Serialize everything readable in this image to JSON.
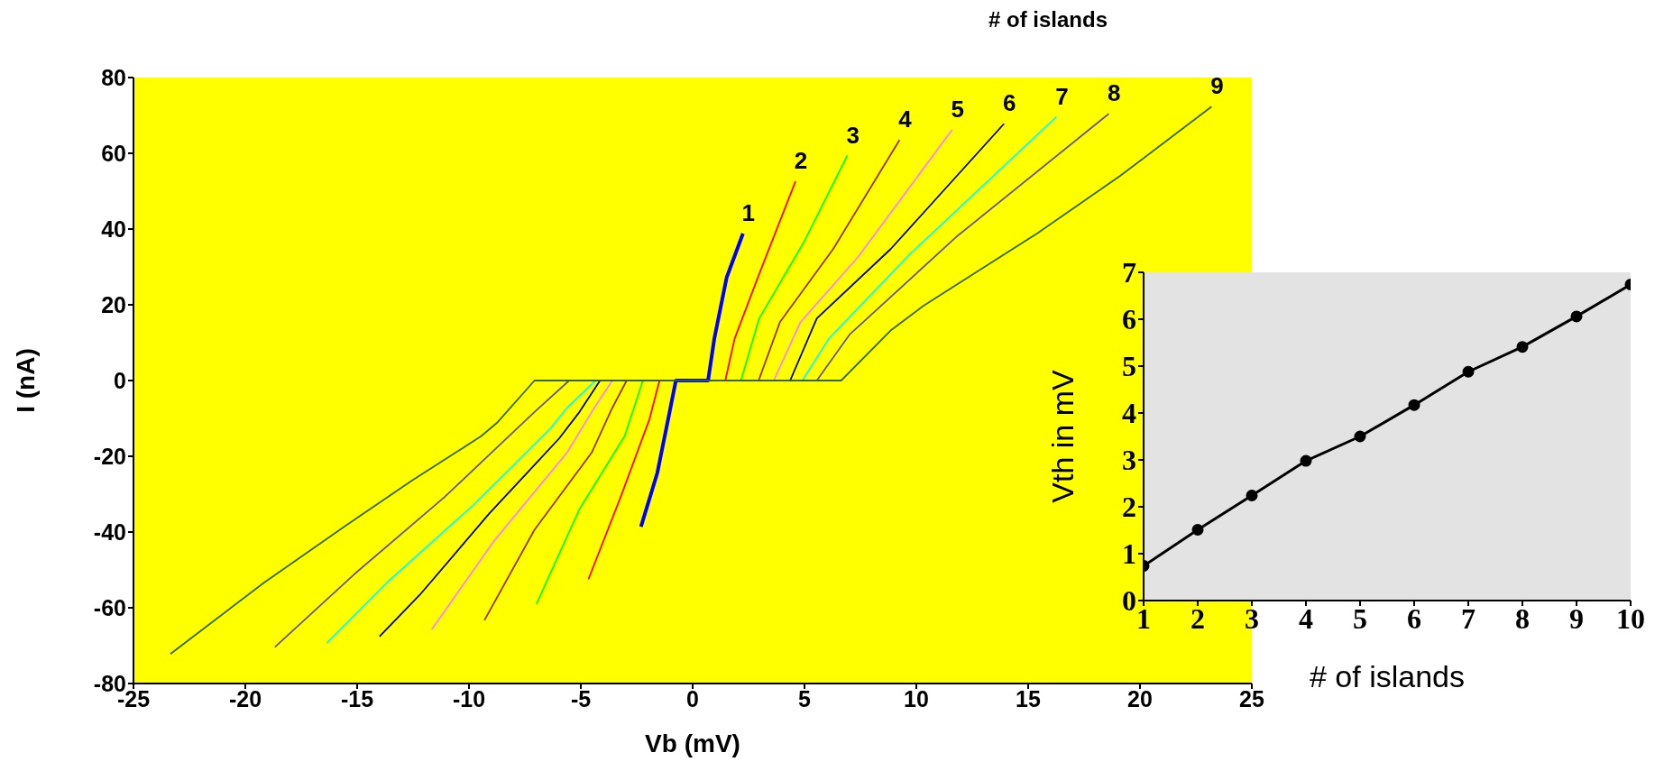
{
  "chart_data": [
    {
      "type": "line",
      "xlabel": "Vb (mV)",
      "ylabel": "I (nA)",
      "legend_title": "# of islands",
      "xlim": [
        -25,
        25
      ],
      "ylim": [
        -80,
        80
      ],
      "xticks": [
        -25,
        -20,
        -15,
        -10,
        -5,
        0,
        5,
        10,
        15,
        20,
        25
      ],
      "yticks": [
        -80,
        -60,
        -40,
        -20,
        0,
        20,
        40,
        60,
        80
      ],
      "marker": "none",
      "series": [
        {
          "name": "1",
          "color": "#0000ff",
          "x": [
            -2.31,
            -1.58,
            -1.03,
            -0.75,
            0.69,
            0.97,
            1.52,
            2.25
          ],
          "values": [
            -38.6,
            -24.4,
            -8.3,
            0,
            0,
            11.1,
            27.2,
            38.8
          ]
        },
        {
          "name": "2",
          "color": "#ff0000",
          "x": [
            -4.66,
            -3.22,
            -1.94,
            -1.48,
            1.46,
            1.88,
            2.98,
            4.6
          ],
          "values": [
            -52.5,
            -30.8,
            -10.4,
            0,
            0,
            11.1,
            28.2,
            52.6
          ]
        },
        {
          "name": "3",
          "color": "#00ff00",
          "x": [
            -6.98,
            -5.06,
            -3.04,
            -2.22,
            2.16,
            2.98,
            5.0,
            6.92
          ],
          "values": [
            -59,
            -34,
            -14.7,
            0,
            0,
            16.4,
            36.8,
            59.4
          ]
        },
        {
          "name": "4",
          "color": "#993300",
          "x": [
            -9.31,
            -7.07,
            -4.51,
            -3.59,
            -2.95,
            2.95,
            3.9,
            6.28,
            9.25
          ],
          "values": [
            -63.3,
            -39.4,
            -19,
            -7.2,
            0,
            0,
            15.4,
            34.7,
            63.5
          ]
        },
        {
          "name": "5",
          "color": "#ff80ff",
          "x": [
            -11.66,
            -8.91,
            -5.61,
            -4.51,
            -3.59,
            3.63,
            4.82,
            7.38,
            11.6
          ],
          "values": [
            -65.7,
            -42.6,
            -19,
            -8.3,
            0,
            0,
            15.4,
            32.5,
            66.2
          ]
        },
        {
          "name": "6",
          "color": "#000080",
          "x": [
            -14.0,
            -12.2,
            -9.09,
            -5.97,
            -5.06,
            -4.14,
            4.36,
            5.55,
            8.85,
            13.92
          ],
          "values": [
            -67.6,
            -56.6,
            -35.1,
            -15.3,
            -8.3,
            0,
            0,
            16.4,
            34.7,
            67.8
          ]
        },
        {
          "name": "7",
          "color": "#00ffff",
          "x": [
            -16.35,
            -13.67,
            -9.82,
            -6.34,
            -5.61,
            -4.33,
            4.91,
            6.1,
            9.76,
            16.27
          ],
          "values": [
            -69.3,
            -53.4,
            -33,
            -12.6,
            -7.2,
            0,
            0,
            11.1,
            33.6,
            69.6
          ]
        },
        {
          "name": "8",
          "color": "#665588",
          "x": [
            -18.68,
            -15.14,
            -11.1,
            -7.07,
            -5.52,
            5.55,
            7.01,
            11.78,
            18.6
          ],
          "values": [
            -70.4,
            -51.2,
            -30.8,
            -8.3,
            0,
            0,
            12.1,
            37.9,
            70.4
          ]
        },
        {
          "name": "9",
          "color": "#336600",
          "x": [
            -23.35,
            -19.17,
            -15.5,
            -12.57,
            -9.46,
            -8.72,
            -7.07,
            6.64,
            8.85,
            10.31,
            15.44,
            19.1,
            23.2
          ],
          "values": [
            -72.2,
            -53.4,
            -38.3,
            -26.5,
            -14.7,
            -11,
            0,
            0,
            13.2,
            19.7,
            39,
            54,
            72.3
          ]
        }
      ]
    },
    {
      "type": "line",
      "xlabel": "# of islands",
      "ylabel": "Vth in mV",
      "xlim": [
        1,
        10
      ],
      "ylim": [
        0,
        7
      ],
      "xticks": [
        1,
        2,
        3,
        4,
        5,
        6,
        7,
        8,
        9,
        10
      ],
      "yticks": [
        0,
        1,
        2,
        3,
        4,
        5,
        6,
        7
      ],
      "marker": "circle",
      "x": [
        1,
        2,
        3,
        4,
        5,
        6,
        7,
        8,
        9,
        10
      ],
      "series": [
        {
          "color": "#000000",
          "values": [
            0.74,
            1.51,
            2.24,
            2.98,
            3.5,
            4.17,
            4.88,
            5.41,
            6.06,
            6.74
          ]
        }
      ]
    }
  ]
}
